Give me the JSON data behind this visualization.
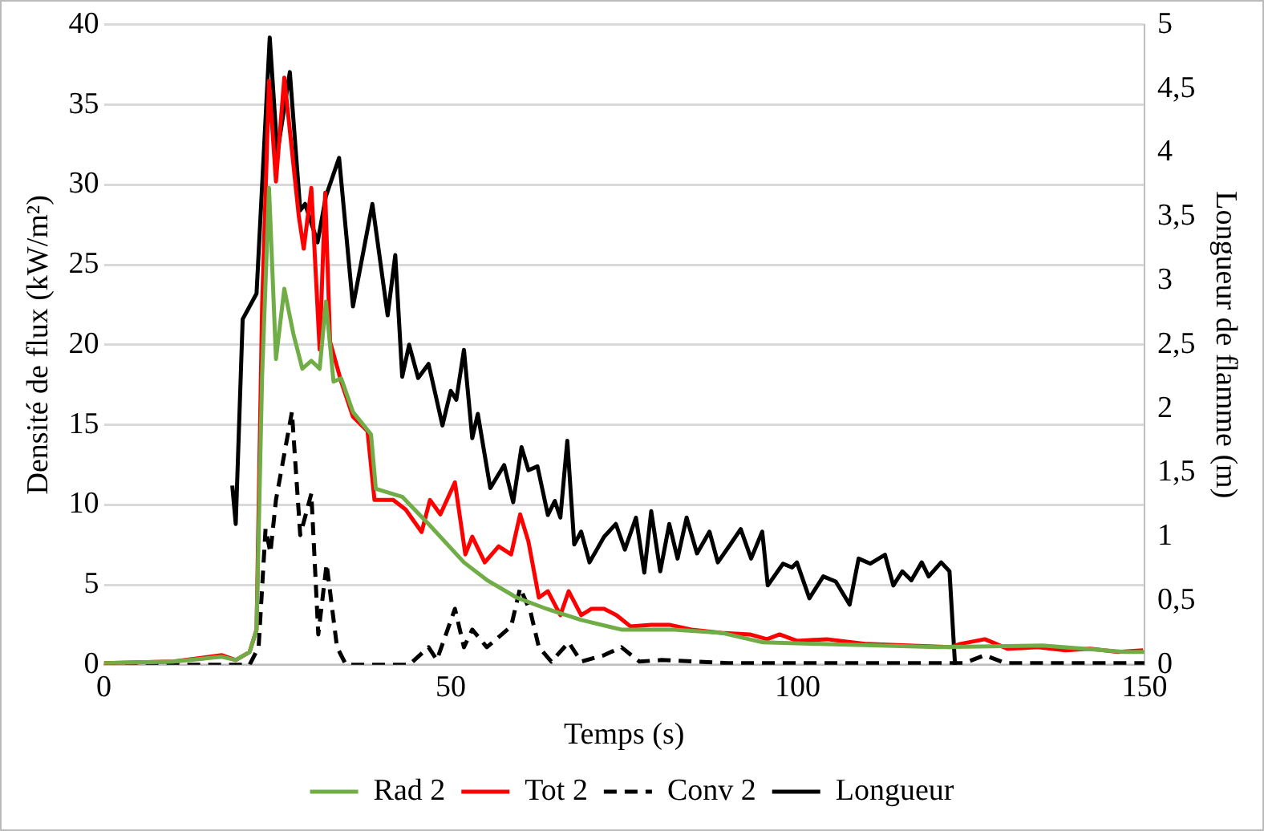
{
  "chart_data": {
    "type": "line",
    "xlabel": "Temps (s)",
    "ylabel": "Densité de flux (kW/m²)",
    "y2label": "Longueur de flamme (m)",
    "xlim": [
      0,
      150
    ],
    "xticks": [
      0,
      50,
      100,
      150
    ],
    "ylim": [
      0,
      40
    ],
    "yticks": [
      0,
      5,
      10,
      15,
      20,
      25,
      30,
      35,
      40
    ],
    "y2lim": [
      0,
      5
    ],
    "y2ticks": [
      0,
      {
        "value": 0.5,
        "label": "0,5"
      },
      1,
      {
        "value": 1.5,
        "label": "1,5"
      },
      2,
      {
        "value": 2.5,
        "label": "2,5"
      },
      3,
      {
        "value": 3.5,
        "label": "3,5"
      },
      4,
      {
        "value": 4.5,
        "label": "4,5"
      },
      5
    ],
    "grid": "y",
    "legend": "bottom",
    "marker": "none",
    "series": [
      {
        "name": "Rad 2",
        "color": "#70ad47",
        "line_style": "solid",
        "x": [
          0,
          10,
          17,
          19,
          21,
          22,
          22.8,
          23.8,
          24.8,
          26,
          27.3,
          28.6,
          29.9,
          31.1,
          32,
          33.1,
          34.2,
          35.9,
          38.5,
          39.2,
          43,
          46.8,
          51.9,
          55.2,
          59.5,
          63.8,
          68.8,
          74.6,
          82.2,
          89,
          95,
          103.2,
          120.2,
          135.3,
          147.2,
          150
        ],
        "values": [
          0.1,
          0.2,
          0.5,
          0.3,
          0.8,
          2.2,
          18,
          29.8,
          19.1,
          23.5,
          20.7,
          18.5,
          19,
          18.5,
          22.7,
          17.7,
          17.9,
          15.8,
          14.4,
          11,
          10.5,
          8.8,
          6.4,
          5.3,
          4.2,
          3.5,
          2.8,
          2.2,
          2.2,
          2,
          1.4,
          1.3,
          1.1,
          1.2,
          0.8,
          0.8
        ]
      },
      {
        "name": "Tot 2",
        "color": "#ff0000",
        "line_style": "solid",
        "x": [
          0,
          10,
          17,
          19,
          21,
          22,
          22.8,
          23.8,
          24.8,
          26,
          28.1,
          28.8,
          29.9,
          31.1,
          31.9,
          32.6,
          34.2,
          35.9,
          38,
          39,
          41.7,
          43.5,
          45.8,
          47,
          48.5,
          50.6,
          52.1,
          53.1,
          54.9,
          56.9,
          58.7,
          60,
          61.2,
          62.7,
          64,
          65.8,
          67,
          68.8,
          70.3,
          72.1,
          73.9,
          75.9,
          78.9,
          81.5,
          84.7,
          89,
          93.1,
          95.6,
          97.4,
          99.9,
          104.2,
          110,
          115.9,
          122,
          123.4,
          127,
          130.3,
          134.6,
          138.6,
          142.2,
          146.2,
          149.8
        ],
        "values": [
          0.1,
          0.2,
          0.6,
          0.3,
          0.8,
          2.2,
          22.4,
          36.5,
          30.2,
          36.7,
          28,
          26,
          29.8,
          19.7,
          29.5,
          20.2,
          17.7,
          15.5,
          14.6,
          10.3,
          10.3,
          9.7,
          8.3,
          10.3,
          9.4,
          11.4,
          6.9,
          8,
          6.4,
          7.4,
          6.9,
          9.4,
          7.7,
          4.2,
          4.6,
          3.1,
          4.6,
          3.1,
          3.5,
          3.5,
          3.1,
          2.4,
          2.5,
          2.5,
          2.2,
          2,
          1.9,
          1.6,
          1.9,
          1.5,
          1.6,
          1.3,
          1.2,
          1.1,
          1.3,
          1.6,
          1,
          1.1,
          0.9,
          1,
          0.8,
          0.9
        ]
      },
      {
        "name": "Conv 2",
        "color": "#000000",
        "line_style": "dashed",
        "x": [
          0,
          21,
          22.3,
          23.3,
          24,
          24.8,
          27.1,
          28.3,
          29.9,
          30.9,
          32.1,
          33.6,
          34.9,
          44,
          46.8,
          48,
          50.6,
          51.9,
          53.1,
          55.2,
          58.7,
          60,
          61.5,
          62.7,
          64.5,
          67,
          68.8,
          72.1,
          74.6,
          77.2,
          80.4,
          90,
          110,
          124,
          127,
          130,
          150
        ],
        "values": [
          0,
          0,
          1.1,
          8.5,
          7,
          10.3,
          15.8,
          8.1,
          10.7,
          1.9,
          6.3,
          1.1,
          0,
          0,
          1.1,
          0.3,
          3.5,
          1.1,
          2.2,
          1.1,
          2.4,
          4.8,
          3.3,
          1.1,
          0.2,
          1.4,
          0.2,
          0.6,
          1.1,
          0.2,
          0.3,
          0.1,
          0.1,
          0.1,
          0.6,
          0.1,
          0.1
        ]
      },
      {
        "name": "Longueur",
        "color": "#000000",
        "line_style": "solid",
        "axis": "y2",
        "x": [
          18.5,
          19,
          20,
          22,
          23.9,
          25,
          26.8,
          28.3,
          29,
          30.8,
          32,
          33.9,
          35.9,
          38.7,
          40.9,
          42,
          43,
          44,
          45.3,
          46.8,
          48.8,
          50,
          50.8,
          51.9,
          53.1,
          53.9,
          55.7,
          57.7,
          59,
          60.2,
          61.2,
          62.5,
          64,
          65,
          65.8,
          66.8,
          67.8,
          68.8,
          70,
          72.1,
          73.8,
          75.1,
          76.7,
          77.9,
          78.9,
          80.2,
          81.5,
          82.7,
          84,
          85.5,
          87.3,
          88.5,
          90.3,
          91.8,
          93.3,
          94.9,
          95.7,
          97.9,
          99.2,
          99.9,
          101.7,
          103.7,
          105.5,
          107.5,
          108.8,
          110.5,
          112.6,
          113.8,
          115.1,
          116.4,
          117.9,
          118.9,
          120.7,
          121.9,
          122.7
        ],
        "values": [
          1.4,
          1.1,
          2.7,
          2.9,
          4.9,
          4,
          4.63,
          3.55,
          3.6,
          3.3,
          3.66,
          3.96,
          2.8,
          3.6,
          2.73,
          3.2,
          2.25,
          2.5,
          2.24,
          2.35,
          1.87,
          2.14,
          2.07,
          2.46,
          1.77,
          1.96,
          1.38,
          1.56,
          1.27,
          1.7,
          1.52,
          1.55,
          1.17,
          1.28,
          1.15,
          1.75,
          0.94,
          1.04,
          0.8,
          1,
          1.1,
          0.9,
          1.15,
          0.72,
          1.2,
          0.73,
          1.1,
          0.83,
          1.15,
          0.87,
          1.04,
          0.8,
          0.94,
          1.06,
          0.83,
          1.04,
          0.62,
          0.79,
          0.76,
          0.8,
          0.52,
          0.69,
          0.65,
          0.47,
          0.83,
          0.79,
          0.86,
          0.62,
          0.73,
          0.66,
          0.8,
          0.69,
          0.8,
          0.73,
          0
        ]
      }
    ]
  }
}
